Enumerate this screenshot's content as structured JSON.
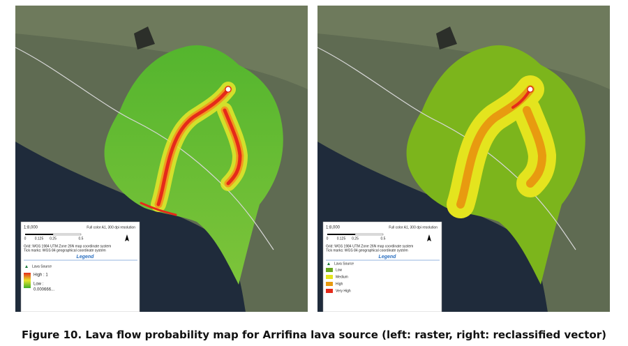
{
  "caption": "Figure 10. Lava flow probability map for Arrifina lava source (left: raster, right: reclassified vector)",
  "maps": [
    {
      "scale": "1:8,000",
      "print_note": "Full color A1, 300 dpi resolution",
      "scale_bar": [
        "0",
        "0.125",
        "0.25",
        "0.5"
      ],
      "grid_note": "Grid: WGS 1984 UTM Zone 26N map coordinate system",
      "tick_note": "Tick marks: WGS 84 geographical coordinate system",
      "legend_title": "Legend",
      "legend": {
        "source": "Lava Source",
        "high": "High : 1",
        "low": "Low :",
        "low_value": "0.000666..."
      }
    },
    {
      "scale": "1:8,000",
      "print_note": "Full color A1, 300 dpi resolution",
      "scale_bar": [
        "0",
        "0.125",
        "0.25",
        "0.5"
      ],
      "grid_note": "Grid: WGS 1984 UTM Zone 26N map coordinate system",
      "tick_note": "Tick marks: WGS 84 geographical coordinate system",
      "legend_title": "Legend",
      "legend": {
        "source": "Lava Source",
        "classes": [
          "Low",
          "Medium",
          "High",
          "Very High"
        ]
      }
    }
  ]
}
